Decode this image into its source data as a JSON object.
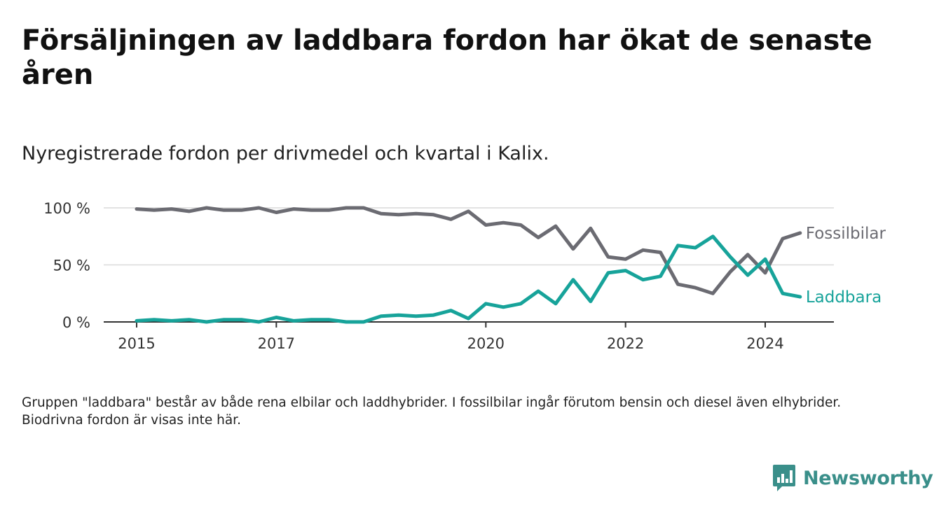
{
  "title": "Försäljningen av laddbara fordon har ökat de senaste åren",
  "subtitle": "Nyregistrerade fordon per drivmedel och kvartal i Kalix.",
  "footnote": "Gruppen \"laddbara\" består av både rena elbilar och laddhybrider. I fossilbilar ingår förutom bensin och diesel även elhybrider. Biodrivna fordon är visas inte här.",
  "brand": {
    "name": "Newsworthy",
    "icon": "bar-chart-logo-icon",
    "color": "#3a8f8a"
  },
  "chart_data": {
    "type": "line",
    "title": "Försäljningen av laddbara fordon har ökat de senaste åren",
    "xlabel": "",
    "ylabel": "",
    "ylim": [
      0,
      100
    ],
    "yticks": [
      {
        "value": 0,
        "label": "0 %"
      },
      {
        "value": 50,
        "label": "50 %"
      },
      {
        "value": 100,
        "label": "100 %"
      }
    ],
    "xticks": [
      {
        "value": 2015.0,
        "label": "2015"
      },
      {
        "value": 2017.0,
        "label": "2017"
      },
      {
        "value": 2020.0,
        "label": "2020"
      },
      {
        "value": 2022.0,
        "label": "2022"
      },
      {
        "value": 2024.0,
        "label": "2024"
      }
    ],
    "grid": true,
    "x_start": 2015.0,
    "x_step": 0.25,
    "series": [
      {
        "name": "Fossilbilar",
        "color": "#6b6b72",
        "values": [
          99,
          98,
          99,
          97,
          100,
          98,
          98,
          100,
          96,
          99,
          98,
          98,
          100,
          100,
          95,
          94,
          95,
          94,
          90,
          97,
          85,
          87,
          85,
          74,
          84,
          64,
          82,
          57,
          55,
          63,
          61,
          33,
          30,
          25,
          44,
          59,
          43,
          73,
          78
        ]
      },
      {
        "name": "Laddbara",
        "color": "#17a39a",
        "values": [
          1,
          2,
          1,
          2,
          0,
          2,
          2,
          0,
          4,
          1,
          2,
          2,
          0,
          0,
          5,
          6,
          5,
          6,
          10,
          3,
          16,
          13,
          16,
          27,
          16,
          37,
          18,
          43,
          45,
          37,
          40,
          67,
          65,
          75,
          57,
          41,
          55,
          25,
          22
        ]
      }
    ]
  }
}
